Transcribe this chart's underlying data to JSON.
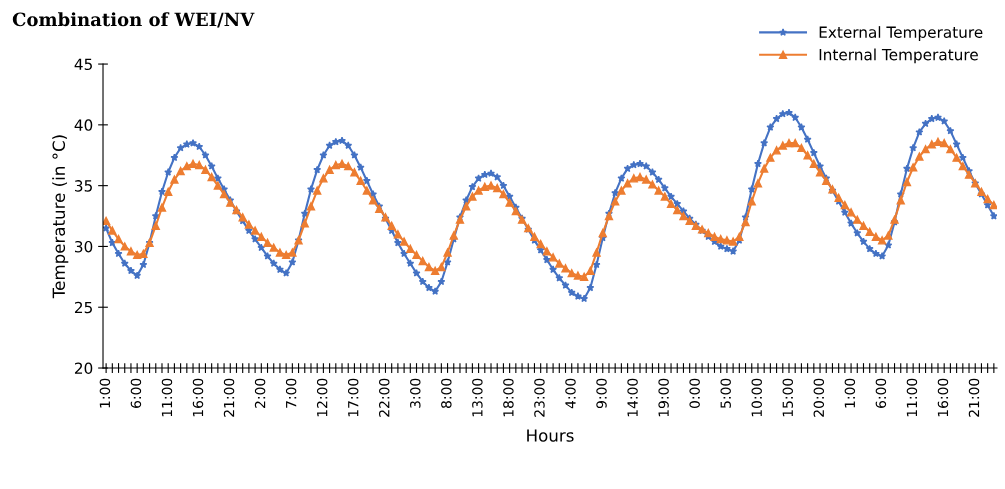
{
  "chart_data": {
    "type": "line",
    "title": "Combination of WEI/NV",
    "xlabel": "Hours",
    "ylabel": "Temperature (in °C)",
    "categories": [
      "1:00",
      null,
      null,
      null,
      null,
      "6:00",
      null,
      null,
      null,
      null,
      "11:00",
      null,
      null,
      null,
      null,
      "16:00",
      null,
      null,
      null,
      null,
      "21:00",
      null,
      null,
      null,
      null,
      "2:00",
      null,
      null,
      null,
      null,
      "7:00",
      null,
      null,
      null,
      null,
      "12:00",
      null,
      null,
      null,
      null,
      "17:00",
      null,
      null,
      null,
      null,
      "22:00",
      null,
      null,
      null,
      null,
      "3:00",
      null,
      null,
      null,
      null,
      "8:00",
      null,
      null,
      null,
      null,
      "13:00",
      null,
      null,
      null,
      null,
      "18:00",
      null,
      null,
      null,
      null,
      "23:00",
      null,
      null,
      null,
      null,
      "4:00",
      null,
      null,
      null,
      null,
      "9:00",
      null,
      null,
      null,
      null,
      "14:00",
      null,
      null,
      null,
      null,
      "19:00",
      null,
      null,
      null,
      null,
      "0:00",
      null,
      null,
      null,
      null,
      "5:00",
      null,
      null,
      null,
      null,
      "10:00",
      null,
      null,
      null,
      null,
      "15:00",
      null,
      null,
      null,
      null,
      "20:00",
      null,
      null,
      null,
      null,
      "1:00",
      null,
      null,
      null,
      null,
      "6:00",
      null,
      null,
      null,
      null,
      "11:00",
      null,
      null,
      null,
      null,
      "16:00",
      null,
      null,
      null,
      null,
      "21:00",
      null,
      null,
      null
    ],
    "series": [
      {
        "name": "External Temperature",
        "color": "#4472c4",
        "marker": "star",
        "values": [
          31.5,
          30.3,
          29.4,
          28.6,
          28.0,
          27.6,
          28.5,
          30.3,
          32.5,
          34.5,
          36.1,
          37.3,
          38.1,
          38.4,
          38.5,
          38.2,
          37.5,
          36.6,
          35.6,
          34.7,
          33.8,
          32.9,
          32.1,
          31.3,
          30.6,
          29.9,
          29.2,
          28.6,
          28.1,
          27.8,
          28.7,
          30.5,
          32.7,
          34.7,
          36.3,
          37.5,
          38.3,
          38.6,
          38.7,
          38.3,
          37.5,
          36.5,
          35.4,
          34.3,
          33.3,
          32.3,
          31.3,
          30.3,
          29.4,
          28.6,
          27.8,
          27.1,
          26.6,
          26.3,
          27.1,
          28.7,
          30.6,
          32.4,
          33.8,
          34.9,
          35.6,
          35.9,
          36.0,
          35.7,
          35.0,
          34.1,
          33.2,
          32.3,
          31.4,
          30.5,
          29.7,
          28.9,
          28.1,
          27.4,
          26.8,
          26.2,
          25.9,
          25.7,
          26.6,
          28.5,
          30.7,
          32.7,
          34.4,
          35.6,
          36.4,
          36.7,
          36.8,
          36.6,
          36.1,
          35.5,
          34.8,
          34.1,
          33.5,
          32.9,
          32.3,
          31.8,
          31.3,
          30.8,
          30.4,
          30.0,
          29.8,
          29.6,
          30.5,
          32.4,
          34.7,
          36.8,
          38.5,
          39.8,
          40.5,
          40.9,
          41.0,
          40.6,
          39.8,
          38.8,
          37.7,
          36.6,
          35.6,
          34.6,
          33.7,
          32.8,
          31.9,
          31.1,
          30.4,
          29.8,
          29.4,
          29.2,
          30.1,
          32.0,
          34.3,
          36.4,
          38.1,
          39.4,
          40.1,
          40.5,
          40.6,
          40.3,
          39.5,
          38.4,
          37.3,
          36.2,
          35.2,
          34.3,
          33.4,
          32.5
        ]
      },
      {
        "name": "Internal Temperature",
        "color": "#ed7d31",
        "marker": "triangle",
        "values": [
          32.1,
          31.3,
          30.6,
          30.0,
          29.6,
          29.3,
          29.4,
          30.3,
          31.7,
          33.2,
          34.5,
          35.5,
          36.2,
          36.6,
          36.8,
          36.7,
          36.3,
          35.7,
          35.0,
          34.3,
          33.6,
          33.0,
          32.4,
          31.8,
          31.3,
          30.8,
          30.3,
          29.9,
          29.5,
          29.3,
          29.5,
          30.5,
          31.9,
          33.3,
          34.6,
          35.6,
          36.3,
          36.7,
          36.8,
          36.6,
          36.1,
          35.4,
          34.6,
          33.8,
          33.1,
          32.4,
          31.7,
          31.0,
          30.4,
          29.8,
          29.3,
          28.8,
          28.3,
          28.0,
          28.3,
          29.5,
          30.9,
          32.2,
          33.3,
          34.1,
          34.6,
          34.9,
          35.0,
          34.8,
          34.3,
          33.6,
          32.9,
          32.2,
          31.5,
          30.8,
          30.2,
          29.6,
          29.1,
          28.6,
          28.2,
          27.8,
          27.6,
          27.5,
          28.0,
          29.5,
          31.1,
          32.5,
          33.7,
          34.6,
          35.2,
          35.6,
          35.7,
          35.5,
          35.1,
          34.6,
          34.1,
          33.5,
          33.0,
          32.5,
          32.1,
          31.7,
          31.4,
          31.1,
          30.8,
          30.6,
          30.5,
          30.4,
          30.8,
          32.0,
          33.7,
          35.2,
          36.4,
          37.3,
          37.9,
          38.3,
          38.5,
          38.5,
          38.1,
          37.5,
          36.8,
          36.1,
          35.4,
          34.7,
          34.0,
          33.4,
          32.8,
          32.2,
          31.7,
          31.2,
          30.8,
          30.5,
          30.9,
          32.2,
          33.8,
          35.3,
          36.5,
          37.4,
          38.0,
          38.4,
          38.6,
          38.5,
          38.0,
          37.3,
          36.6,
          35.9,
          35.2,
          34.5,
          33.9,
          33.4
        ]
      }
    ],
    "ylim": [
      20,
      45
    ],
    "yticks": [
      20,
      25,
      30,
      35,
      40,
      45
    ],
    "grid": false,
    "legend": "top right",
    "line_style": "solid"
  }
}
